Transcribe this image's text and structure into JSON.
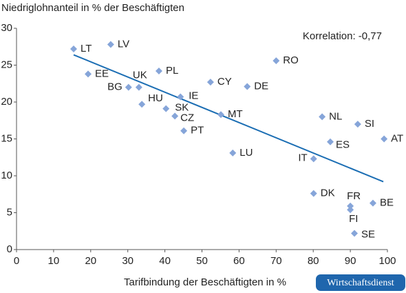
{
  "chart_data": {
    "type": "scatter",
    "y_axis_label": "Niedriglohnanteil in % der Beschäftigten",
    "x_axis_label": "Tarifbindung der Beschäftigten in %",
    "annotation": "Korrelation: -0,77",
    "source": "Wirtschaftsdienst",
    "series": [
      {
        "color": "#86a5d9",
        "point_labels": [
          "LT",
          "LV",
          "EE",
          "BG",
          "UK",
          "PL",
          "CY",
          "DE",
          "RO",
          "IE",
          "HU",
          "SK",
          "CZ",
          "MT",
          "PT",
          "NL",
          "SI",
          "AT",
          "ES",
          "LU",
          "IT",
          "DK",
          "FR",
          "FI",
          "BE",
          "SE"
        ],
        "x": [
          15.4,
          25.4,
          19.3,
          30.2,
          33,
          38.4,
          52.3,
          62.2,
          70,
          44.2,
          33.8,
          40.3,
          42.7,
          55.1,
          45.1,
          82.4,
          92,
          99.1,
          84.6,
          58.3,
          80.1,
          80.1,
          90,
          90,
          96.1,
          91.1
        ],
        "y": [
          27.2,
          27.8,
          23.8,
          22,
          22,
          24.2,
          22.7,
          22.1,
          25.6,
          20.7,
          19.7,
          19.1,
          18.1,
          18.3,
          16.1,
          18,
          17,
          15,
          14.6,
          13.1,
          12.3,
          7.6,
          5.9,
          5.4,
          6.3,
          2.2
        ]
      }
    ],
    "trendline": {
      "color": "#1a6db3",
      "x": [
        15.4,
        98.9
      ],
      "y": [
        26.4,
        9.2
      ]
    },
    "xlim": [
      0,
      100
    ],
    "ylim": [
      0,
      30
    ],
    "xticks": [
      0,
      10,
      20,
      30,
      40,
      50,
      60,
      70,
      80,
      90,
      100
    ],
    "yticks": [
      0,
      5,
      10,
      15,
      20,
      25,
      30
    ]
  }
}
